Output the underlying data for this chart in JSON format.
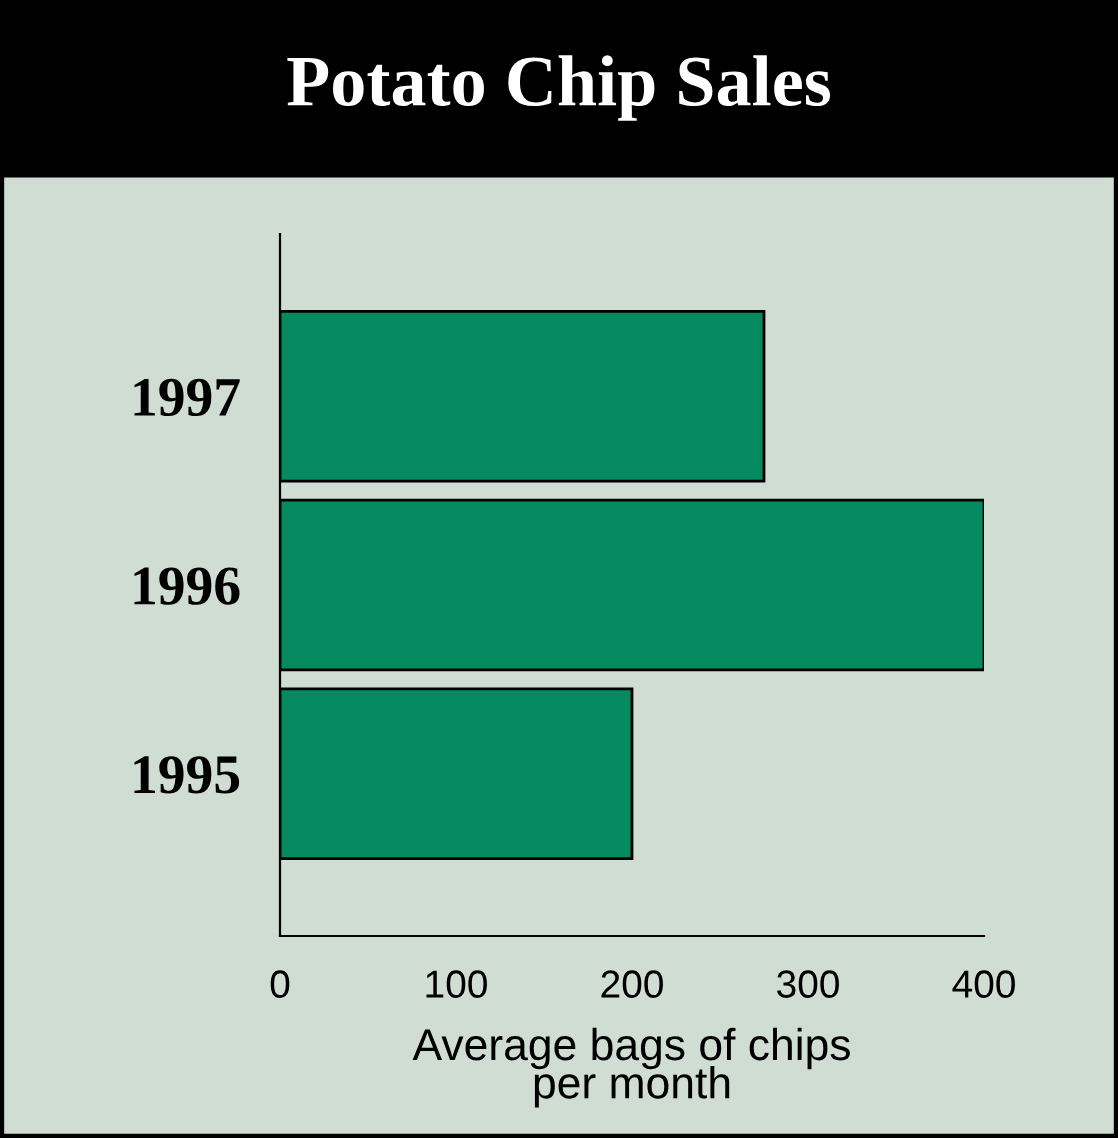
{
  "chart_data": {
    "type": "bar",
    "orientation": "horizontal",
    "title": "Potato Chip Sales",
    "categories": [
      "1997",
      "1996",
      "1995"
    ],
    "values": [
      275,
      400,
      200
    ],
    "color": "#05895f",
    "xlabel": "Average bags of chips\nper month",
    "xlim": [
      0,
      400
    ],
    "xticks": [
      0,
      100,
      200,
      300,
      400
    ],
    "grid": false
  }
}
